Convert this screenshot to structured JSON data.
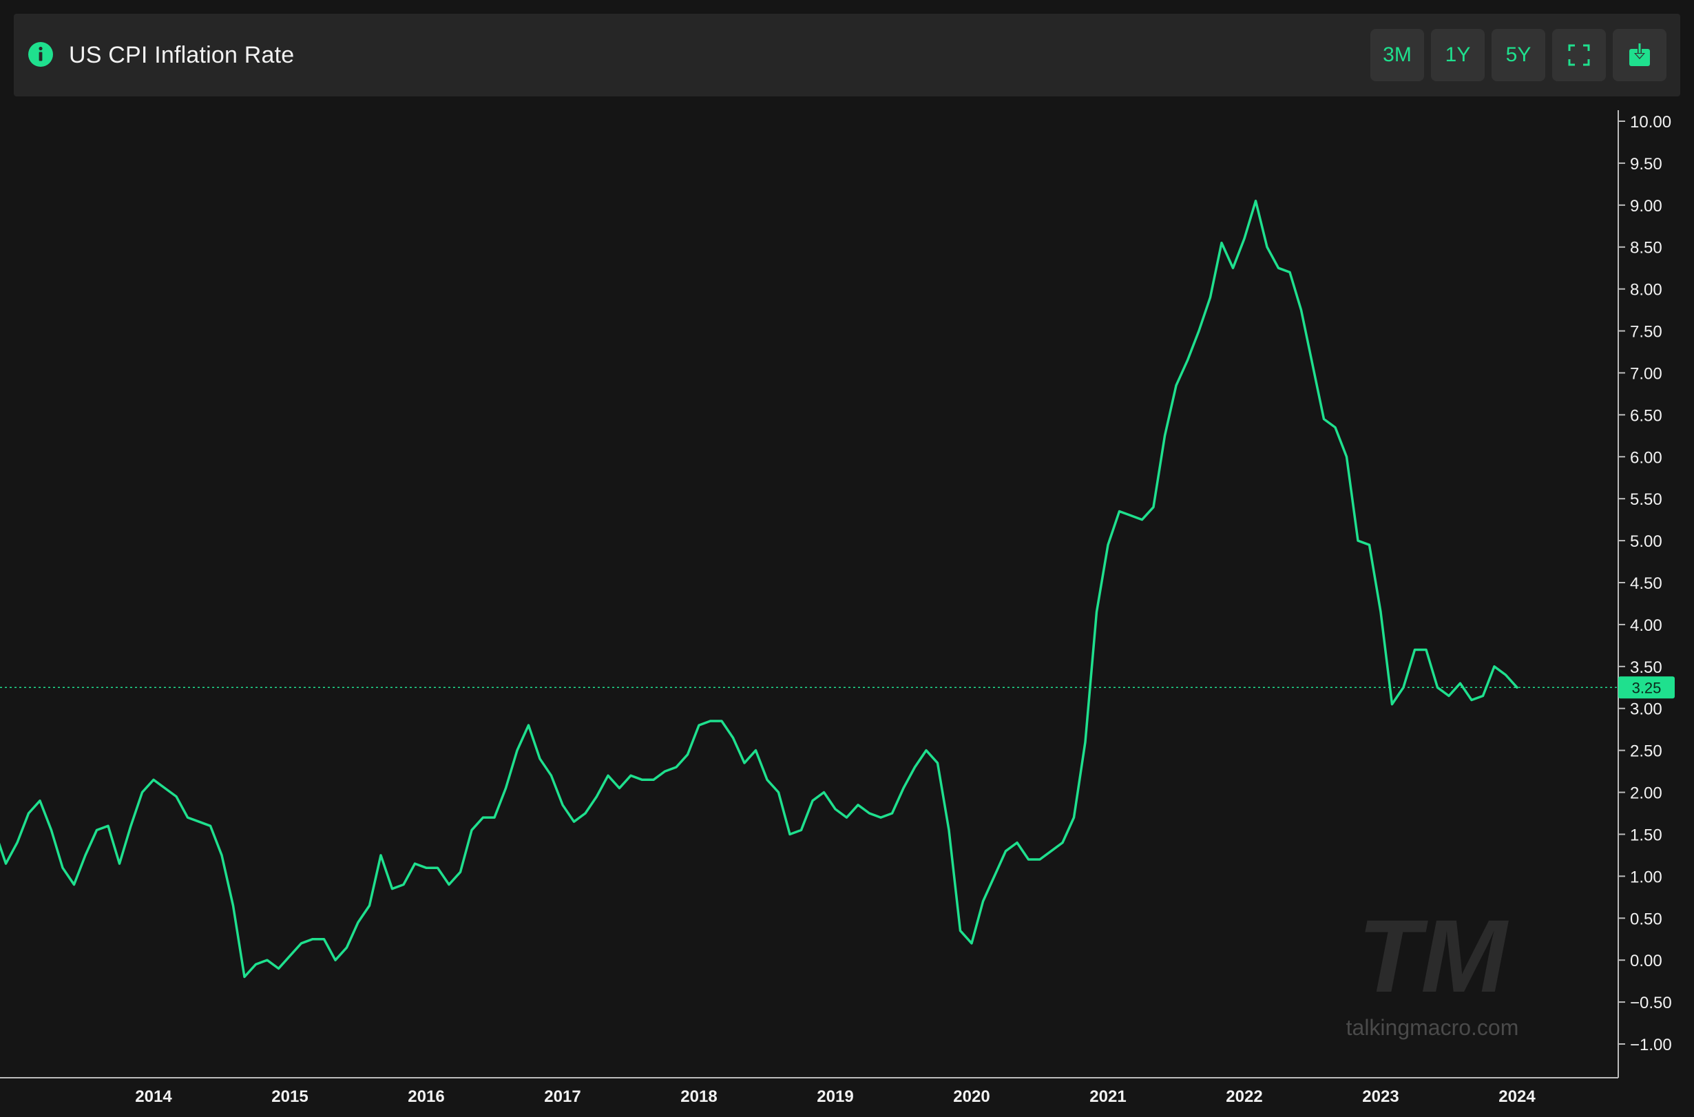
{
  "header": {
    "title": "US CPI Inflation Rate",
    "info_icon": "info-circle-icon",
    "buttons": [
      {
        "id": "3m",
        "label": "3M"
      },
      {
        "id": "1y",
        "label": "1Y"
      },
      {
        "id": "5y",
        "label": "5Y"
      },
      {
        "id": "fullscreen",
        "icon": "fullscreen-icon"
      },
      {
        "id": "download",
        "icon": "download-icon"
      }
    ]
  },
  "watermark": {
    "logo": "TM",
    "site": "talkingmacro.com"
  },
  "colors": {
    "background": "#151515",
    "panel": "#262626",
    "button": "#333333",
    "accent": "#1fe08e",
    "text": "#f2f2f2"
  },
  "chart_data": {
    "type": "line",
    "title": "US CPI Inflation Rate",
    "xlabel": "",
    "ylabel": "",
    "ylim": [
      -1.0,
      10.0
    ],
    "y_ticks": [
      "10.00",
      "9.50",
      "9.00",
      "8.50",
      "8.00",
      "7.50",
      "7.00",
      "6.50",
      "6.00",
      "5.50",
      "5.00",
      "4.50",
      "4.00",
      "3.50",
      "3.00",
      "2.50",
      "2.00",
      "1.50",
      "1.00",
      "0.50",
      "0.00",
      "−0.50",
      "−1.00"
    ],
    "x_ticks": [
      "2014",
      "2015",
      "2016",
      "2017",
      "2018",
      "2019",
      "2020",
      "2021",
      "2022",
      "2023",
      "2024"
    ],
    "x_range": [
      "2012-11",
      "2024-12"
    ],
    "grid": false,
    "current_value": 3.25,
    "current_label": "3.25",
    "series": [
      {
        "start": "2012-11",
        "frequency": "monthly",
        "values": [
          1.55,
          1.15,
          1.4,
          1.75,
          1.9,
          1.55,
          1.1,
          0.9,
          1.25,
          1.55,
          1.6,
          1.15,
          1.6,
          2.0,
          2.15,
          2.05,
          1.95,
          1.7,
          1.65,
          1.6,
          1.25,
          0.65,
          -0.2,
          -0.05,
          0.0,
          -0.1,
          0.05,
          0.2,
          0.25,
          0.25,
          0.0,
          0.15,
          0.45,
          0.65,
          1.25,
          0.85,
          0.9,
          1.15,
          1.1,
          1.1,
          0.9,
          1.05,
          1.55,
          1.7,
          1.7,
          2.05,
          2.5,
          2.8,
          2.4,
          2.2,
          1.85,
          1.65,
          1.75,
          1.95,
          2.2,
          2.05,
          2.2,
          2.15,
          2.15,
          2.25,
          2.3,
          2.45,
          2.8,
          2.85,
          2.85,
          2.65,
          2.35,
          2.5,
          2.15,
          2.0,
          1.5,
          1.55,
          1.9,
          2.0,
          1.8,
          1.7,
          1.85,
          1.75,
          1.7,
          1.75,
          2.05,
          2.3,
          2.5,
          2.35,
          1.55,
          0.35,
          0.2,
          0.7,
          1.0,
          1.3,
          1.4,
          1.2,
          1.2,
          1.3,
          1.4,
          1.7,
          2.6,
          4.15,
          4.95,
          5.35,
          5.3,
          5.25,
          5.4,
          6.25,
          6.85,
          7.15,
          7.5,
          7.9,
          8.55,
          8.25,
          8.6,
          9.05,
          8.5,
          8.25,
          8.2,
          7.75,
          7.1,
          6.45,
          6.35,
          6.0,
          5.0,
          4.95,
          4.15,
          3.05,
          3.25,
          3.7,
          3.7,
          3.25,
          3.15,
          3.3,
          3.1,
          3.15,
          3.5,
          3.4,
          3.25
        ]
      }
    ]
  }
}
